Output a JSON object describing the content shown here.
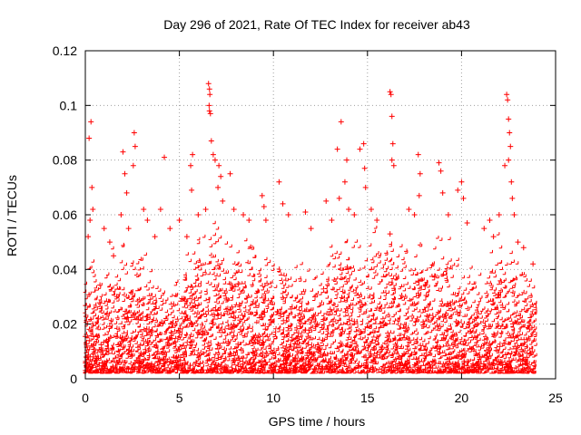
{
  "chart_data": {
    "type": "scatter",
    "title": "Day 296 of 2021, Rate Of TEC Index for receiver ab43",
    "xlabel": "GPS time / hours",
    "ylabel": "ROTI / TECUs",
    "xlim": [
      0,
      25
    ],
    "ylim": [
      0,
      0.12
    ],
    "xticks": [
      "0",
      "5",
      "10",
      "15",
      "20",
      "25"
    ],
    "yticks": [
      "0",
      "0.02",
      "0.04",
      "0.06",
      "0.08",
      "0.1",
      "0.12"
    ],
    "grid": true,
    "marker": "+",
    "color": "#ff0000",
    "series": [
      {
        "name": "ROTI",
        "points": [
          [
            0.3,
            0.094
          ],
          [
            0.2,
            0.088
          ],
          [
            0.35,
            0.07
          ],
          [
            0.4,
            0.062
          ],
          [
            0.25,
            0.058
          ],
          [
            0.15,
            0.052
          ],
          [
            1.0,
            0.055
          ],
          [
            1.3,
            0.05
          ],
          [
            1.5,
            0.045
          ],
          [
            2.0,
            0.083
          ],
          [
            2.1,
            0.075
          ],
          [
            2.2,
            0.068
          ],
          [
            1.9,
            0.06
          ],
          [
            2.3,
            0.055
          ],
          [
            2.6,
            0.09
          ],
          [
            2.65,
            0.085
          ],
          [
            2.55,
            0.078
          ],
          [
            3.1,
            0.062
          ],
          [
            3.3,
            0.058
          ],
          [
            3.7,
            0.052
          ],
          [
            4.2,
            0.081
          ],
          [
            4.0,
            0.062
          ],
          [
            4.5,
            0.055
          ],
          [
            5.0,
            0.058
          ],
          [
            5.4,
            0.052
          ],
          [
            5.7,
            0.082
          ],
          [
            5.6,
            0.078
          ],
          [
            5.65,
            0.069
          ],
          [
            6.0,
            0.06
          ],
          [
            6.4,
            0.062
          ],
          [
            6.55,
            0.108
          ],
          [
            6.6,
            0.106
          ],
          [
            6.62,
            0.104
          ],
          [
            6.58,
            0.1
          ],
          [
            6.6,
            0.098
          ],
          [
            6.65,
            0.097
          ],
          [
            6.7,
            0.087
          ],
          [
            6.8,
            0.082
          ],
          [
            6.9,
            0.08
          ],
          [
            7.1,
            0.078
          ],
          [
            7.2,
            0.074
          ],
          [
            7.05,
            0.07
          ],
          [
            7.3,
            0.065
          ],
          [
            7.7,
            0.075
          ],
          [
            7.9,
            0.062
          ],
          [
            8.4,
            0.06
          ],
          [
            8.7,
            0.058
          ],
          [
            9.4,
            0.067
          ],
          [
            9.5,
            0.063
          ],
          [
            9.6,
            0.058
          ],
          [
            10.3,
            0.072
          ],
          [
            10.5,
            0.064
          ],
          [
            10.8,
            0.06
          ],
          [
            11.7,
            0.061
          ],
          [
            12.0,
            0.055
          ],
          [
            12.8,
            0.065
          ],
          [
            13.1,
            0.058
          ],
          [
            13.4,
            0.084
          ],
          [
            13.6,
            0.094
          ],
          [
            13.9,
            0.08
          ],
          [
            13.8,
            0.072
          ],
          [
            13.5,
            0.066
          ],
          [
            14.0,
            0.062
          ],
          [
            14.3,
            0.06
          ],
          [
            14.6,
            0.084
          ],
          [
            14.8,
            0.086
          ],
          [
            14.85,
            0.077
          ],
          [
            14.9,
            0.07
          ],
          [
            15.2,
            0.062
          ],
          [
            15.5,
            0.058
          ],
          [
            16.2,
            0.105
          ],
          [
            16.25,
            0.104
          ],
          [
            16.3,
            0.096
          ],
          [
            16.35,
            0.086
          ],
          [
            16.3,
            0.08
          ],
          [
            16.4,
            0.078
          ],
          [
            16.2,
            0.053
          ],
          [
            17.2,
            0.062
          ],
          [
            17.5,
            0.06
          ],
          [
            17.7,
            0.082
          ],
          [
            17.8,
            0.075
          ],
          [
            17.75,
            0.067
          ],
          [
            18.8,
            0.079
          ],
          [
            18.9,
            0.076
          ],
          [
            19.0,
            0.068
          ],
          [
            19.3,
            0.06
          ],
          [
            19.8,
            0.069
          ],
          [
            20.0,
            0.072
          ],
          [
            20.1,
            0.066
          ],
          [
            20.3,
            0.057
          ],
          [
            21.2,
            0.055
          ],
          [
            21.5,
            0.058
          ],
          [
            21.7,
            0.052
          ],
          [
            22.0,
            0.06
          ],
          [
            22.3,
            0.078
          ],
          [
            22.4,
            0.104
          ],
          [
            22.45,
            0.102
          ],
          [
            22.5,
            0.095
          ],
          [
            22.55,
            0.09
          ],
          [
            22.6,
            0.085
          ],
          [
            22.5,
            0.08
          ],
          [
            22.65,
            0.072
          ],
          [
            22.7,
            0.066
          ],
          [
            22.8,
            0.06
          ],
          [
            23.0,
            0.05
          ],
          [
            23.3,
            0.048
          ],
          [
            23.8,
            0.042
          ]
        ],
        "density_profile": {
          "hours": [
            0,
            1,
            2,
            3,
            4,
            5,
            6,
            7,
            8,
            9,
            10,
            11,
            12,
            13,
            14,
            15,
            16,
            17,
            18,
            19,
            20,
            21,
            22,
            23,
            24
          ],
          "typical_max": [
            0.04,
            0.035,
            0.045,
            0.042,
            0.03,
            0.035,
            0.045,
            0.05,
            0.042,
            0.048,
            0.04,
            0.038,
            0.036,
            0.042,
            0.048,
            0.045,
            0.052,
            0.042,
            0.045,
            0.05,
            0.036,
            0.034,
            0.048,
            0.04,
            0.03
          ],
          "baseline": 0.002
        }
      }
    ]
  }
}
